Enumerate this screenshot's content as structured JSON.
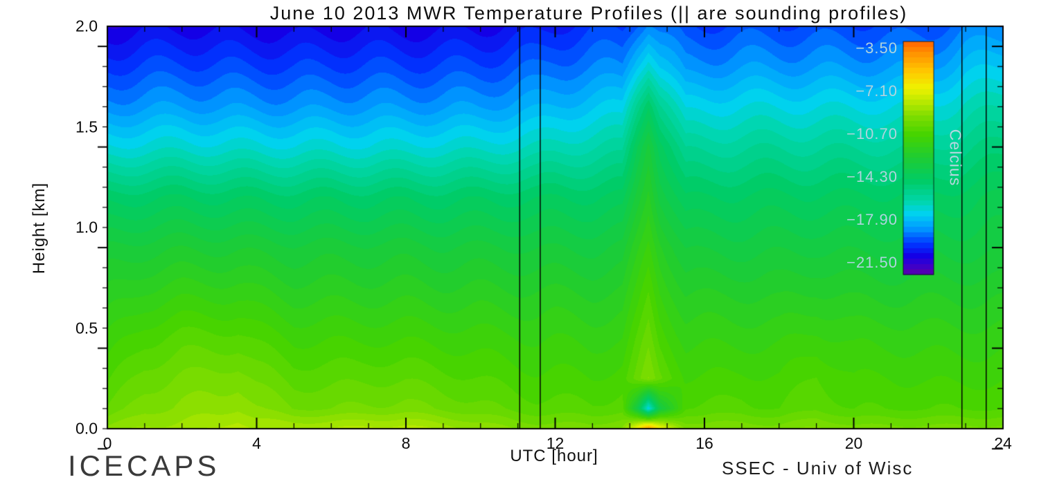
{
  "chart_data": {
    "type": "heatmap",
    "title": "June 10 2013 MWR Temperature Profiles (|| are sounding profiles)",
    "xlabel": "UTC [hour]",
    "ylabel": "Height [km]",
    "footer_left": "ICECAPS",
    "footer_right": "SSEC - Univ of Wisc",
    "x_range": [
      0,
      24
    ],
    "y_range": [
      0,
      2
    ],
    "x_major_ticks": [
      0,
      4,
      8,
      12,
      16,
      20,
      24
    ],
    "x_tick_labels": [
      "0",
      "4",
      "8",
      "12",
      "16",
      "20",
      "24"
    ],
    "x_minor_step": 1,
    "y_major_ticks": [
      0,
      0.5,
      1,
      1.5,
      2
    ],
    "y_tick_labels": [
      "0.0",
      "0.5",
      "1.0",
      "1.5",
      "2.0"
    ],
    "y_minor_step": 0.1,
    "grid_on": false,
    "sounding_times": [
      11.05,
      11.6,
      22.9,
      23.55
    ],
    "contour_levels": 44,
    "colorbar": {
      "label": "Celcius",
      "tick_values": [
        -3.5,
        -7.1,
        -10.7,
        -14.3,
        -17.9,
        -21.5
      ],
      "tick_labels": [
        "−3.50",
        "−7.10",
        "−10.70",
        "−14.30",
        "−17.90",
        "−21.50"
      ],
      "vmin": -22.5,
      "vmax": -2.9
    },
    "colormap": [
      {
        "t": 0.0,
        "color": "#5a00aa"
      },
      {
        "t": 0.04,
        "color": "#3c00cc"
      },
      {
        "t": 0.08,
        "color": "#1400e6"
      },
      {
        "t": 0.13,
        "color": "#0035ff"
      },
      {
        "t": 0.2,
        "color": "#009dff"
      },
      {
        "t": 0.26,
        "color": "#00d2f0"
      },
      {
        "t": 0.31,
        "color": "#00d6ae"
      },
      {
        "t": 0.4,
        "color": "#00cc66"
      },
      {
        "t": 0.5,
        "color": "#1ecc33"
      },
      {
        "t": 0.6,
        "color": "#45d400"
      },
      {
        "t": 0.68,
        "color": "#7fdd00"
      },
      {
        "t": 0.74,
        "color": "#b8e800"
      },
      {
        "t": 0.8,
        "color": "#eef200"
      },
      {
        "t": 0.87,
        "color": "#ffc800"
      },
      {
        "t": 0.95,
        "color": "#ff9100"
      },
      {
        "t": 1.0,
        "color": "#ff6400"
      }
    ],
    "grid": {
      "x": [
        0,
        1,
        2,
        3,
        3.5,
        4,
        5,
        6,
        7,
        8,
        9,
        10,
        11,
        11.5,
        12,
        13,
        13.8,
        14.2,
        14.5,
        14.8,
        15.5,
        16,
        17,
        18,
        19,
        20,
        21,
        22,
        23,
        24
      ],
      "y": [
        0,
        0.1,
        0.25,
        0.45,
        0.65,
        0.9,
        1.15,
        1.4,
        1.6,
        1.8,
        2.0
      ],
      "values": [
        [
          -9.0,
          -8.6,
          -8.5,
          -8.2,
          -7.9,
          -8.3,
          -8.3,
          -8.2,
          -8.1,
          -8.0,
          -8.4,
          -8.8,
          -9.2,
          -9.3,
          -9.3,
          -9.4,
          -9.0,
          -6.5,
          -4.0,
          -6.5,
          -9.2,
          -9.3,
          -9.2,
          -9.4,
          -9.0,
          -9.4,
          -9.4,
          -9.4,
          -9.4,
          -9.4
        ],
        [
          -10.0,
          -9.3,
          -9.0,
          -8.9,
          -8.7,
          -9.1,
          -9.6,
          -9.6,
          -9.5,
          -9.4,
          -9.7,
          -9.9,
          -10.2,
          -10.3,
          -10.3,
          -10.4,
          -10.2,
          -13.5,
          -17.5,
          -13.5,
          -10.4,
          -10.4,
          -10.3,
          -10.5,
          -10.1,
          -10.5,
          -10.5,
          -10.5,
          -10.5,
          -10.5
        ],
        [
          -10.6,
          -9.8,
          -9.5,
          -9.4,
          -9.3,
          -9.7,
          -10.2,
          -10.2,
          -10.1,
          -10.1,
          -10.3,
          -10.5,
          -10.7,
          -10.8,
          -10.8,
          -10.9,
          -10.7,
          -9.9,
          -9.2,
          -9.9,
          -10.9,
          -10.9,
          -10.8,
          -10.9,
          -10.4,
          -10.9,
          -10.9,
          -11.0,
          -11.0,
          -11.0
        ],
        [
          -11.3,
          -10.6,
          -10.3,
          -10.3,
          -10.3,
          -10.6,
          -11.0,
          -11.0,
          -11.0,
          -11.0,
          -11.1,
          -11.2,
          -11.3,
          -11.4,
          -11.4,
          -11.5,
          -11.4,
          -10.5,
          -9.8,
          -10.6,
          -11.5,
          -11.5,
          -11.5,
          -11.5,
          -11.2,
          -11.5,
          -11.5,
          -11.6,
          -11.6,
          -11.6
        ],
        [
          -12.1,
          -11.6,
          -11.4,
          -11.4,
          -11.4,
          -11.6,
          -11.9,
          -11.9,
          -11.9,
          -11.9,
          -12.0,
          -12.0,
          -12.1,
          -12.1,
          -12.1,
          -12.2,
          -12.1,
          -11.2,
          -10.4,
          -11.2,
          -12.2,
          -12.2,
          -12.2,
          -12.3,
          -12.1,
          -12.3,
          -12.3,
          -12.3,
          -12.3,
          -12.3
        ],
        [
          -13.1,
          -12.9,
          -12.8,
          -12.8,
          -12.8,
          -12.9,
          -13.0,
          -13.0,
          -13.0,
          -13.0,
          -13.1,
          -13.1,
          -13.1,
          -13.2,
          -13.2,
          -13.2,
          -13.1,
          -12.0,
          -11.2,
          -12.0,
          -13.2,
          -13.3,
          -13.3,
          -13.3,
          -13.2,
          -13.3,
          -13.3,
          -13.3,
          -13.3,
          -13.3
        ],
        [
          -14.7,
          -14.6,
          -14.5,
          -14.6,
          -14.6,
          -14.6,
          -14.7,
          -14.6,
          -14.7,
          -14.6,
          -14.7,
          -14.6,
          -14.6,
          -14.6,
          -14.5,
          -14.5,
          -14.4,
          -13.0,
          -12.0,
          -13.1,
          -14.5,
          -14.5,
          -14.4,
          -14.4,
          -14.4,
          -14.4,
          -14.4,
          -14.4,
          -14.2,
          -14.0
        ],
        [
          -17.1,
          -17.0,
          -16.9,
          -17.0,
          -17.0,
          -17.0,
          -17.1,
          -17.0,
          -17.1,
          -17.0,
          -17.0,
          -16.9,
          -16.8,
          -16.7,
          -16.5,
          -16.3,
          -16.1,
          -14.0,
          -12.8,
          -14.1,
          -16.0,
          -16.0,
          -15.9,
          -15.9,
          -15.9,
          -15.9,
          -15.9,
          -15.9,
          -15.5,
          -15.2
        ],
        [
          -18.7,
          -18.6,
          -18.5,
          -18.6,
          -18.6,
          -18.6,
          -18.7,
          -18.6,
          -18.6,
          -18.6,
          -18.6,
          -18.5,
          -18.3,
          -18.2,
          -18.0,
          -17.7,
          -17.5,
          -15.5,
          -14.3,
          -15.6,
          -17.4,
          -17.3,
          -17.2,
          -17.2,
          -17.2,
          -17.2,
          -17.2,
          -17.1,
          -16.6,
          -16.3
        ],
        [
          -19.9,
          -19.8,
          -19.7,
          -19.8,
          -19.8,
          -19.8,
          -19.9,
          -19.8,
          -19.8,
          -19.8,
          -19.8,
          -19.7,
          -19.5,
          -19.4,
          -19.2,
          -19.0,
          -18.9,
          -17.5,
          -16.7,
          -17.6,
          -18.8,
          -18.7,
          -18.6,
          -18.6,
          -18.6,
          -18.6,
          -18.6,
          -18.5,
          -17.9,
          -17.6
        ],
        [
          -21.0,
          -20.9,
          -20.8,
          -20.9,
          -20.9,
          -20.9,
          -21.0,
          -20.9,
          -20.9,
          -20.9,
          -20.9,
          -20.8,
          -20.6,
          -20.5,
          -20.3,
          -20.0,
          -19.9,
          -19.2,
          -18.7,
          -19.2,
          -19.8,
          -19.8,
          -19.7,
          -19.7,
          -19.7,
          -19.7,
          -19.7,
          -19.6,
          -19.1,
          -18.8
        ]
      ]
    }
  }
}
